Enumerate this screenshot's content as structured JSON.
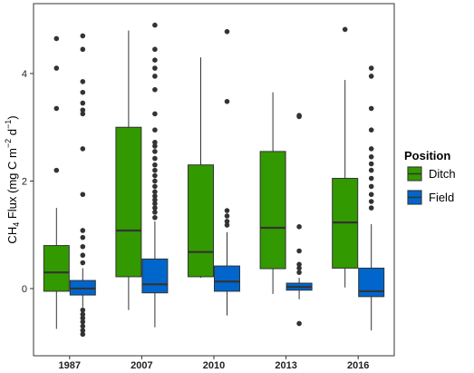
{
  "chart_data": {
    "type": "boxplot",
    "title": "",
    "ylabel": {
      "prefix": "CH",
      "sub": "4",
      "middle": " Flux (mg C m",
      "sup1": "−2",
      "between": " d",
      "sup2": "−1",
      "suffix": ")"
    },
    "xlabel": "",
    "categories": [
      "1987",
      "2007",
      "2010",
      "2013",
      "2016"
    ],
    "ylim": [
      -1.25,
      5.3
    ],
    "yticks": [
      0,
      2,
      4
    ],
    "ytick_labels": [
      "0",
      "2",
      "4"
    ],
    "grid": false,
    "legend": {
      "title": "Position",
      "position": "right",
      "entries": [
        {
          "name": "Ditch",
          "color": "#339900"
        },
        {
          "name": "Field",
          "color": "#0066CC"
        }
      ]
    },
    "series": [
      {
        "name": "Ditch",
        "color": "#339900",
        "boxes": [
          {
            "category": "1987",
            "whisker_low": -0.75,
            "q1": -0.05,
            "median": 0.3,
            "q3": 0.8,
            "whisker_high": 1.5,
            "outliers": [
              2.2,
              3.35,
              4.1,
              4.65
            ]
          },
          {
            "category": "2007",
            "whisker_low": -0.4,
            "q1": 0.22,
            "median": 1.08,
            "q3": 3.0,
            "whisker_high": 4.8,
            "outliers": []
          },
          {
            "category": "2010",
            "whisker_low": 0.2,
            "q1": 0.22,
            "median": 0.68,
            "q3": 2.3,
            "whisker_high": 4.3,
            "outliers": []
          },
          {
            "category": "2013",
            "whisker_low": -0.1,
            "q1": 0.37,
            "median": 1.13,
            "q3": 2.55,
            "whisker_high": 3.65,
            "outliers": []
          },
          {
            "category": "2016",
            "whisker_low": 0.02,
            "q1": 0.38,
            "median": 1.23,
            "q3": 2.05,
            "whisker_high": 3.88,
            "outliers": [
              4.82
            ]
          }
        ]
      },
      {
        "name": "Field",
        "color": "#0066CC",
        "boxes": [
          {
            "category": "1987",
            "whisker_low": -0.35,
            "q1": -0.12,
            "median": 0.0,
            "q3": 0.15,
            "whisker_high": 0.38,
            "outliers": [
              -0.4,
              -0.48,
              -0.55,
              -0.62,
              -0.7,
              -0.78,
              -0.85,
              0.48,
              0.62,
              0.78,
              0.95,
              1.08,
              1.75,
              2.6,
              3.25,
              3.32,
              3.45,
              3.65,
              3.85,
              4.45,
              4.7
            ]
          },
          {
            "category": "2007",
            "whisker_low": -0.72,
            "q1": -0.08,
            "median": 0.08,
            "q3": 0.55,
            "whisker_high": 1.25,
            "outliers": [
              1.32,
              1.42,
              1.5,
              1.58,
              1.65,
              1.72,
              1.8,
              1.9,
              2.0,
              2.1,
              2.2,
              2.3,
              2.42,
              2.55,
              2.65,
              2.72,
              2.95,
              3.25,
              3.7,
              3.95,
              4.1,
              4.25,
              4.45,
              4.9
            ]
          },
          {
            "category": "2010",
            "whisker_low": -0.5,
            "q1": -0.05,
            "median": 0.13,
            "q3": 0.42,
            "whisker_high": 1.05,
            "outliers": [
              1.18,
              1.25,
              1.35,
              1.45,
              3.48,
              4.78
            ]
          },
          {
            "category": "2013",
            "whisker_low": -0.2,
            "q1": -0.03,
            "median": 0.03,
            "q3": 0.1,
            "whisker_high": 0.2,
            "outliers": [
              -0.65,
              0.3,
              0.38,
              0.45,
              0.7,
              1.15,
              3.2,
              3.22
            ]
          },
          {
            "category": "2016",
            "whisker_low": -0.78,
            "q1": -0.15,
            "median": -0.05,
            "q3": 0.38,
            "whisker_high": 1.2,
            "outliers": [
              1.5,
              1.62,
              1.75,
              1.9,
              2.05,
              2.2,
              2.32,
              2.45,
              2.6,
              2.95,
              3.35,
              3.95,
              4.1
            ]
          }
        ]
      }
    ]
  }
}
